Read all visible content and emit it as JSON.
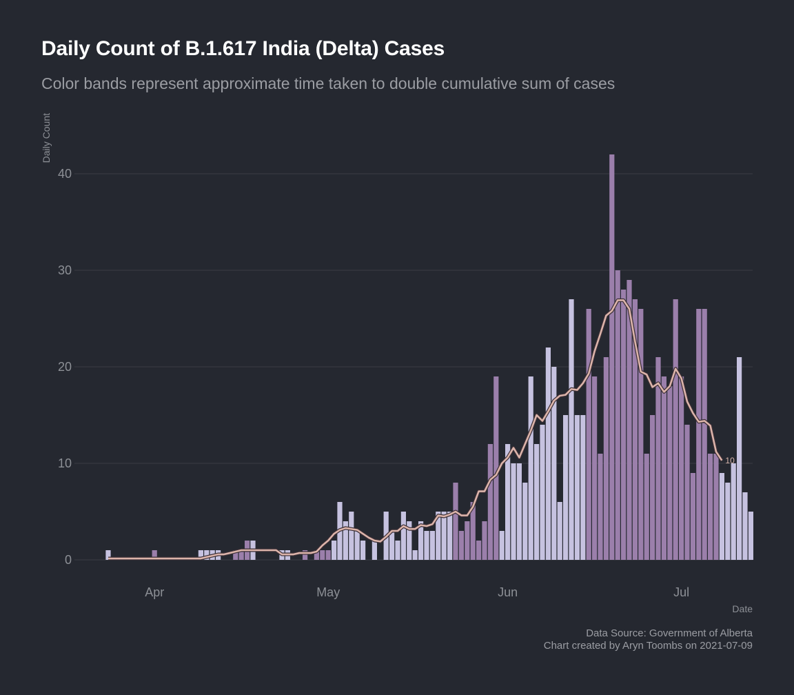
{
  "colors": {
    "background": "#252830",
    "band_light": "#c6c2e0",
    "band_dark": "#9b7fab",
    "line": "#dcb4aa",
    "grid": "#3a3d45",
    "text": "#8d9096"
  },
  "chart_data": {
    "type": "bar",
    "title": "Daily Count of B.1.617 India (Delta) Cases",
    "subtitle": "Color bands represent approximate time taken to double cumulative sum of cases",
    "xlabel": "Date",
    "ylabel": "Daily Count",
    "x_start": "2021-03-24",
    "ylim": [
      0,
      44
    ],
    "yticks": [
      0,
      10,
      20,
      30,
      40
    ],
    "xticks": [
      {
        "label": "Apr",
        "date": "2021-04-01"
      },
      {
        "label": "May",
        "date": "2021-05-01"
      },
      {
        "label": "Jun",
        "date": "2021-06-01"
      },
      {
        "label": "Jul",
        "date": "2021-07-01"
      }
    ],
    "values": [
      1,
      0,
      0,
      0,
      0,
      0,
      0,
      0,
      1,
      0,
      0,
      0,
      0,
      0,
      0,
      0,
      1,
      1,
      1,
      1,
      0,
      0,
      1,
      1,
      2,
      2,
      0,
      0,
      0,
      0,
      1,
      1,
      0,
      0,
      1,
      0,
      1,
      1,
      1,
      2,
      6,
      4,
      5,
      3,
      2,
      0,
      2,
      0,
      5,
      3,
      2,
      5,
      4,
      1,
      4,
      3,
      3,
      5,
      5,
      5,
      8,
      3,
      4,
      6,
      2,
      4,
      12,
      19,
      3,
      12,
      10,
      10,
      8,
      19,
      12,
      14,
      22,
      20,
      6,
      15,
      27,
      15,
      15,
      26,
      19,
      11,
      21,
      42,
      30,
      28,
      29,
      27,
      26,
      11,
      15,
      21,
      19,
      18,
      27,
      19,
      14,
      9,
      26,
      26,
      11,
      11,
      9,
      8,
      10,
      21,
      7,
      5
    ],
    "bands": [
      "light",
      "dark",
      "light",
      "dark",
      "light",
      "dark",
      "light",
      "dark",
      "light",
      "dark",
      "light",
      "dark"
    ],
    "band_breaks": [
      1,
      15,
      20,
      25,
      33,
      39,
      60,
      68,
      83,
      106,
      112
    ],
    "rolling_avg": [
      0.14,
      0.14,
      0.14,
      0.14,
      0.14,
      0.14,
      0.14,
      0.14,
      0.14,
      0.14,
      0.14,
      0.14,
      0.14,
      0.14,
      0.14,
      0.14,
      0.14,
      0.29,
      0.43,
      0.57,
      0.57,
      0.71,
      0.86,
      1.0,
      1.0,
      1.0,
      1.0,
      1.0,
      1.0,
      1.0,
      0.57,
      0.57,
      0.57,
      0.71,
      0.71,
      0.71,
      0.86,
      1.5,
      2.0,
      2.7,
      3.1,
      3.3,
      3.2,
      3.1,
      2.7,
      2.3,
      2.0,
      1.9,
      2.4,
      3.0,
      3.0,
      3.5,
      3.2,
      3.2,
      3.6,
      3.5,
      3.7,
      4.6,
      4.5,
      4.7,
      5.0,
      4.6,
      4.6,
      5.5,
      7.1,
      7.1,
      8.3,
      8.8,
      10.0,
      10.6,
      11.6,
      10.6,
      12.0,
      13.4,
      15.0,
      14.4,
      15.4,
      16.5,
      17.0,
      17.1,
      17.7,
      17.6,
      18.3,
      19.3,
      21.6,
      23.4,
      25.3,
      25.8,
      26.9,
      26.9,
      26.0,
      22.6,
      19.5,
      19.2,
      17.9,
      18.3,
      17.4,
      18.0,
      19.8,
      18.8,
      16.4,
      15.2,
      14.3,
      14.4,
      13.9,
      11.2,
      10.3
    ],
    "end_label": "10"
  },
  "caption": {
    "line1": "Data Source: Government of Alberta",
    "line2": "Chart created by Aryn Toombs on 2021-07-09"
  }
}
